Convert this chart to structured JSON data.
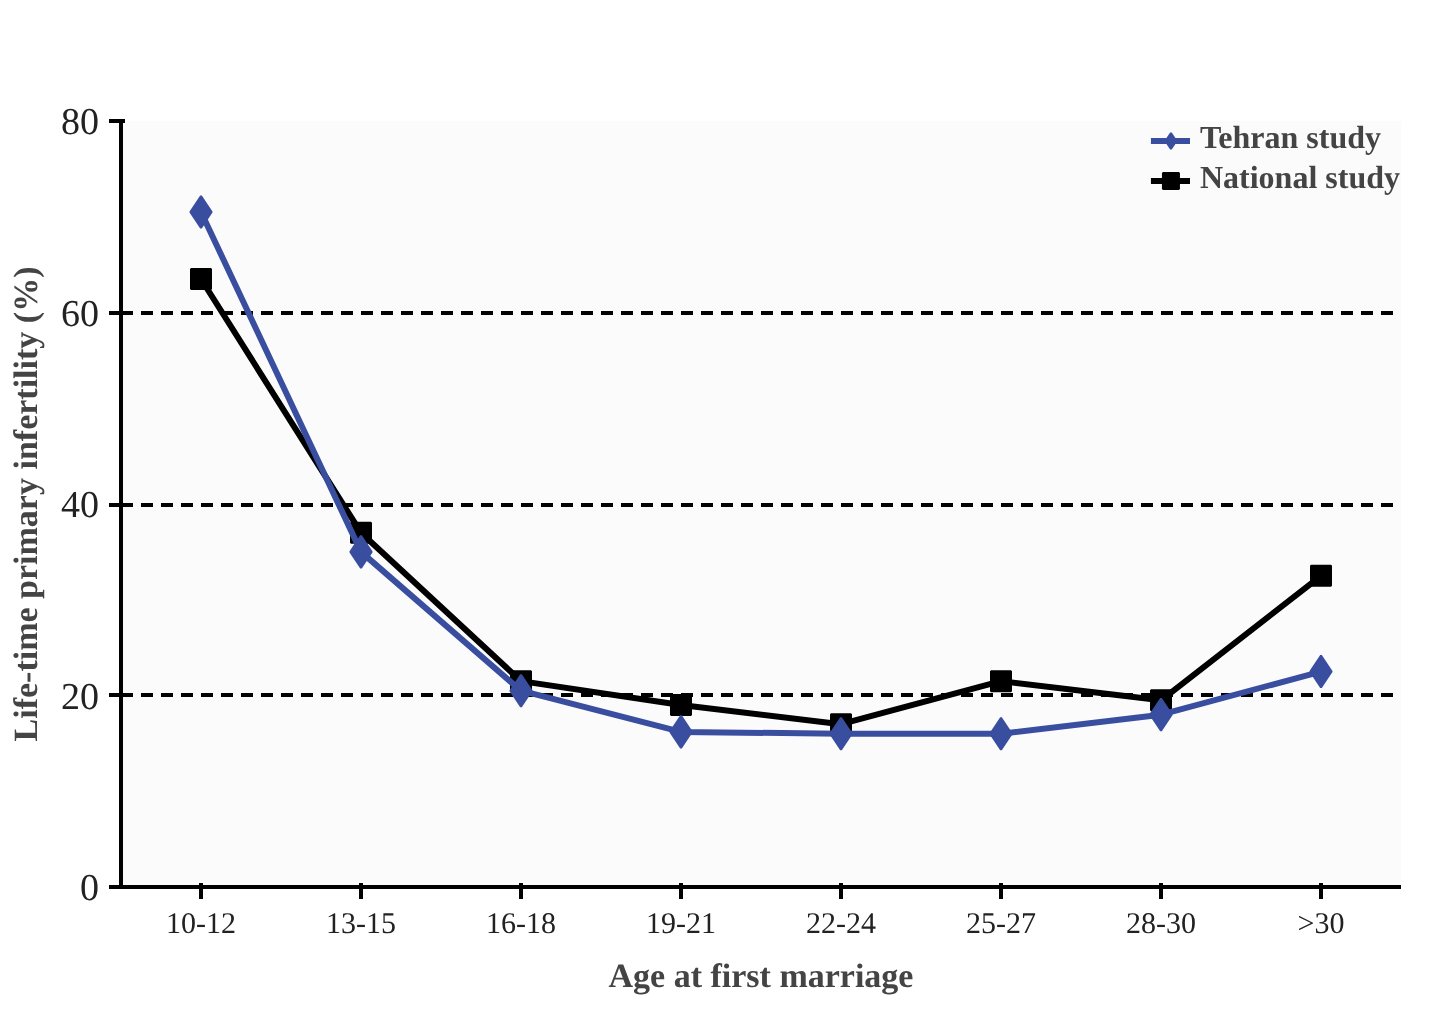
{
  "chart_data": {
    "type": "line",
    "xlabel": "Age at first marriage",
    "ylabel": "Life-time primary infertility (%)",
    "categories": [
      "10-12",
      "13-15",
      "16-18",
      "19-21",
      "22-24",
      "25-27",
      "28-30",
      ">30"
    ],
    "series": [
      {
        "name": "Tehran study",
        "color": "#3a4ea0",
        "marker": "diamond",
        "values": [
          70.5,
          35,
          20.5,
          16.2,
          16,
          16,
          18,
          22.5
        ]
      },
      {
        "name": "National study",
        "color": "#000000",
        "marker": "square",
        "values": [
          63.5,
          37,
          21.5,
          19,
          17,
          21.5,
          19.5,
          32.5
        ]
      }
    ],
    "ylim": [
      0,
      80
    ],
    "yticks": [
      0,
      20,
      40,
      60,
      80
    ],
    "grid": "y",
    "legend": "top right"
  }
}
